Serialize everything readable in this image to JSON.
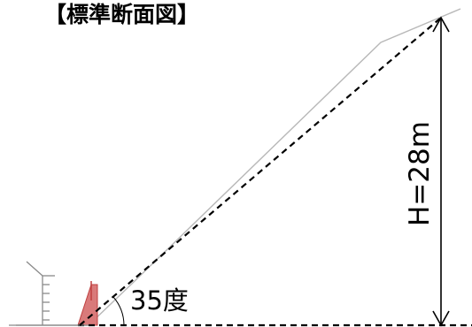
{
  "title": "【標準断面図】",
  "angle_label": "35度",
  "height_label": "H=28m",
  "colors": {
    "wall_fill": "#d97a7a",
    "wall_stroke": "#c04040",
    "slope_line": "#b8b8b8",
    "lines": "#000000"
  }
}
